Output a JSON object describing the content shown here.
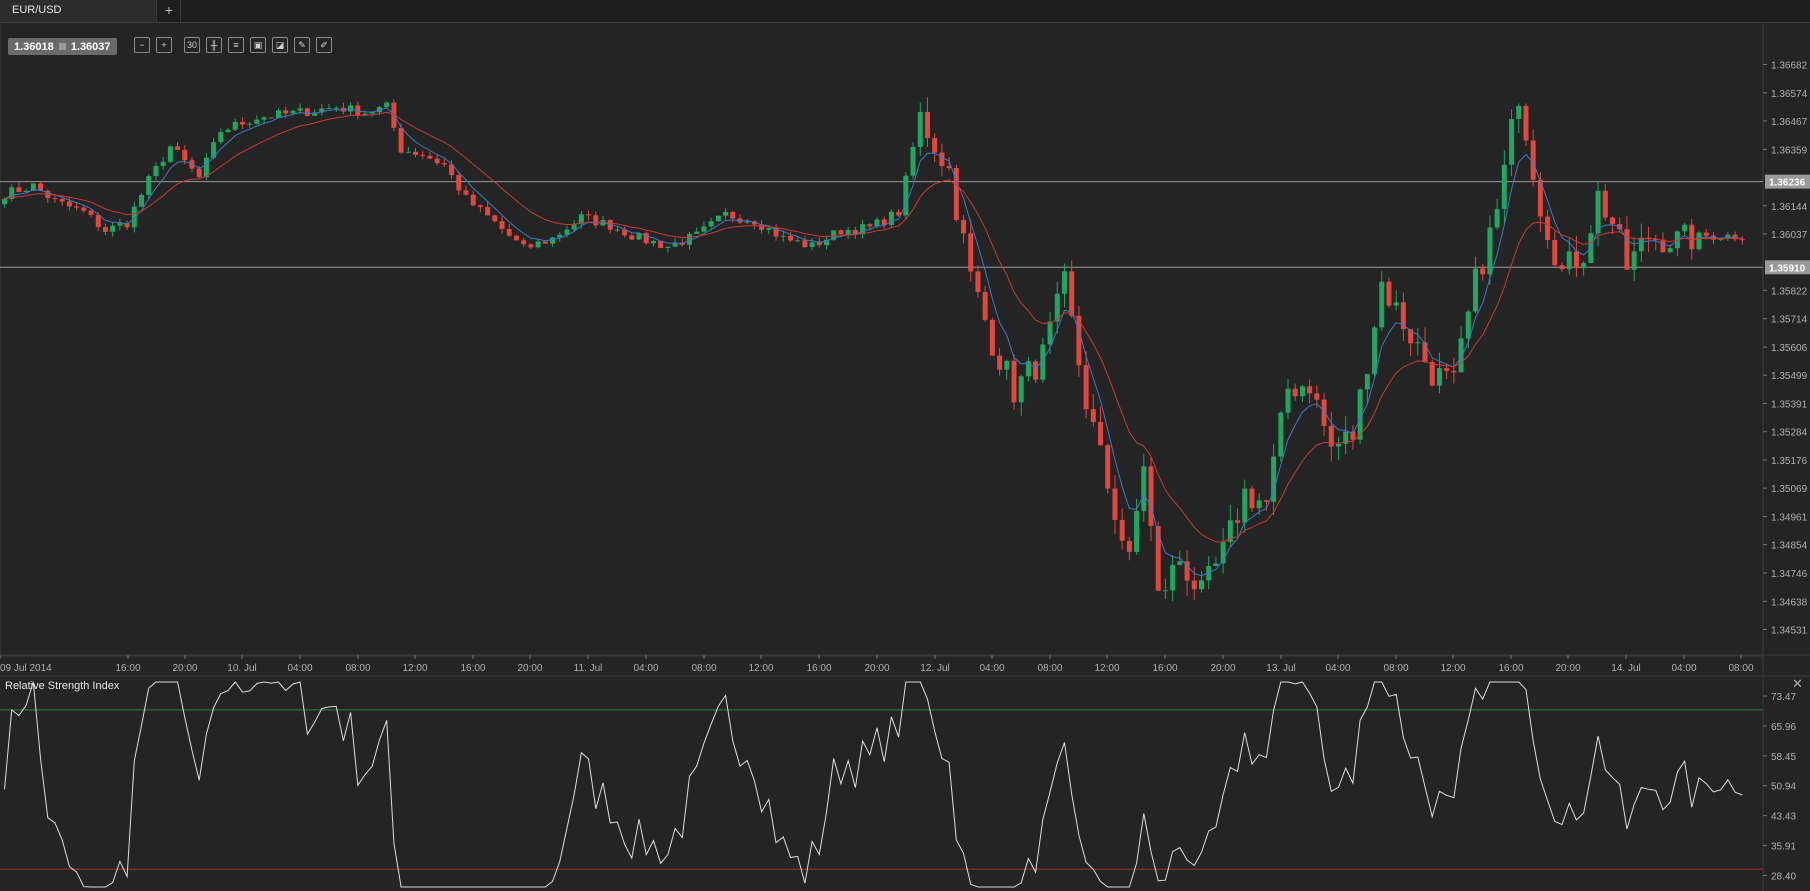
{
  "tab": {
    "title": "EUR/USD",
    "add_label": "+"
  },
  "quote": {
    "bid": "1.36018",
    "ask": "1.36037"
  },
  "toolbar": [
    {
      "name": "zoom-out-icon",
      "glyph": "−"
    },
    {
      "name": "zoom-in-icon",
      "glyph": "+"
    },
    {
      "name": "timeframe-button",
      "glyph": "30"
    },
    {
      "name": "candlestick-icon",
      "glyph": "╫"
    },
    {
      "name": "indicators-icon",
      "glyph": "≡"
    },
    {
      "name": "chart-type-icon",
      "glyph": "▣"
    },
    {
      "name": "template-icon",
      "glyph": "◪"
    },
    {
      "name": "draw-tool-icon",
      "glyph": "✎"
    },
    {
      "name": "brush-icon",
      "glyph": "✐"
    }
  ],
  "colors": {
    "background": "#242424",
    "grid": "#3a3a3a",
    "up": "#1fa660",
    "down": "#e2473d",
    "ma_fast": "#3d77c9",
    "ma_slow": "#c83a34",
    "rsi_line": "#dddddd",
    "rsi_upper": "#3f7a3f",
    "rsi_lower": "#a13030",
    "hline": "#9a9a9a"
  },
  "chart_data": [
    {
      "type": "candlestick",
      "symbol": "EUR/USD",
      "ylim": [
        1.3443,
        1.3676
      ],
      "price_ticks": [
        "1.36682",
        "1.36574",
        "1.36467",
        "1.36359",
        "1.36144",
        "1.36037",
        "1.35822",
        "1.35714",
        "1.35606",
        "1.35499",
        "1.35391",
        "1.35284",
        "1.35176",
        "1.35069",
        "1.34961",
        "1.34854",
        "1.34746",
        "1.34638",
        "1.34531"
      ],
      "price_tick_values": [
        1.36682,
        1.36574,
        1.36467,
        1.36359,
        1.36144,
        1.36037,
        1.35822,
        1.35714,
        1.35606,
        1.35499,
        1.35391,
        1.35284,
        1.35176,
        1.35069,
        1.34961,
        1.34854,
        1.34746,
        1.34638,
        1.34531
      ],
      "horizontal_lines": [
        {
          "label": "1.36236",
          "value": 1.36236
        },
        {
          "label": "1.35910",
          "value": 1.3591
        }
      ],
      "time_ticks": [
        "09 Jul 2014",
        "16:00",
        "20:00",
        "10. Jul",
        "04:00",
        "08:00",
        "12:00",
        "16:00",
        "20:00",
        "11. Jul",
        "04:00",
        "08:00",
        "12:00",
        "16:00",
        "20:00",
        "12. Jul",
        "04:00",
        "08:00",
        "12:00",
        "16:00",
        "20:00",
        "13. Jul",
        "04:00",
        "08:00",
        "12:00",
        "16:00",
        "20:00",
        "14. Jul",
        "04:00",
        "08:00"
      ],
      "anchors": [
        [
          0,
          1.3619
        ],
        [
          4,
          1.3622
        ],
        [
          7,
          1.3616
        ],
        [
          11,
          1.3612
        ],
        [
          14,
          1.3605
        ],
        [
          17,
          1.3608
        ],
        [
          20,
          1.3624
        ],
        [
          23,
          1.3637
        ],
        [
          27,
          1.3625
        ],
        [
          30,
          1.3643
        ],
        [
          35,
          1.3648
        ],
        [
          41,
          1.365
        ],
        [
          46,
          1.3652
        ],
        [
          50,
          1.365
        ],
        [
          53,
          1.3652
        ],
        [
          55,
          1.3636
        ],
        [
          58,
          1.3634
        ],
        [
          61,
          1.363
        ],
        [
          64,
          1.3617
        ],
        [
          68,
          1.3608
        ],
        [
          72,
          1.3598
        ],
        [
          76,
          1.3602
        ],
        [
          80,
          1.361
        ],
        [
          84,
          1.3607
        ],
        [
          88,
          1.3602
        ],
        [
          92,
          1.3599
        ],
        [
          96,
          1.3603
        ],
        [
          100,
          1.3611
        ],
        [
          104,
          1.3609
        ],
        [
          108,
          1.3602
        ],
        [
          112,
          1.3599
        ],
        [
          116,
          1.3605
        ],
        [
          120,
          1.3606
        ],
        [
          124,
          1.3612
        ],
        [
          127,
          1.3648
        ],
        [
          131,
          1.3628
        ],
        [
          134,
          1.3587
        ],
        [
          137,
          1.3563
        ],
        [
          140,
          1.3544
        ],
        [
          144,
          1.3557
        ],
        [
          147,
          1.3584
        ],
        [
          150,
          1.354
        ],
        [
          153,
          1.3508
        ],
        [
          156,
          1.3478
        ],
        [
          158,
          1.3517
        ],
        [
          160,
          1.3465
        ],
        [
          163,
          1.348
        ],
        [
          166,
          1.3466
        ],
        [
          169,
          1.3482
        ],
        [
          172,
          1.3505
        ],
        [
          175,
          1.3501
        ],
        [
          178,
          1.3545
        ],
        [
          181,
          1.3547
        ],
        [
          184,
          1.3522
        ],
        [
          187,
          1.3527
        ],
        [
          191,
          1.3585
        ],
        [
          194,
          1.357
        ],
        [
          198,
          1.3551
        ],
        [
          201,
          1.3546
        ],
        [
          204,
          1.3585
        ],
        [
          207,
          1.3612
        ],
        [
          210,
          1.3658
        ],
        [
          213,
          1.3615
        ],
        [
          216,
          1.3589
        ],
        [
          219,
          1.3597
        ],
        [
          221,
          1.3618
        ],
        [
          223,
          1.3608
        ],
        [
          225,
          1.3591
        ],
        [
          228,
          1.3603
        ],
        [
          232,
          1.3601
        ],
        [
          236,
          1.3603
        ],
        [
          241,
          1.3603
        ]
      ],
      "ma_periods": [
        5,
        14
      ],
      "candle_count": 242
    },
    {
      "type": "line",
      "title": "Relative Strength Index",
      "ylim": [
        24.5,
        77.5
      ],
      "ticks": [
        "73.47",
        "65.96",
        "58.45",
        "50.94",
        "43.43",
        "35.91",
        "28.40"
      ],
      "tick_values": [
        73.47,
        65.96,
        58.45,
        50.94,
        43.43,
        35.91,
        28.4
      ],
      "levels": [
        70,
        30
      ]
    }
  ]
}
